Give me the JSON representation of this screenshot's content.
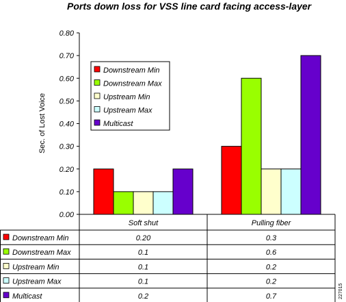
{
  "chart_data": {
    "type": "bar",
    "title": "Ports down loss for VSS line card facing access-layer",
    "ylabel": "Sec. of Lost Voice",
    "xlabel": "",
    "ylim": [
      0,
      0.8
    ],
    "yticks": [
      "0.00",
      "0.10",
      "0.20",
      "0.30",
      "0.40",
      "0.50",
      "0.60",
      "0.70",
      "0.80"
    ],
    "categories": [
      "Soft shut",
      "Pulling fiber"
    ],
    "series": [
      {
        "name": "Downstream Min",
        "color": "#ff0000",
        "values": [
          0.2,
          0.3
        ],
        "labels": [
          "0.20",
          "0.3"
        ]
      },
      {
        "name": "Downstream Max",
        "color": "#99ff00",
        "values": [
          0.1,
          0.6
        ],
        "labels": [
          "0.1",
          "0.6"
        ]
      },
      {
        "name": "Upstream Min",
        "color": "#ffffcc",
        "values": [
          0.1,
          0.2
        ],
        "labels": [
          "0.1",
          "0.2"
        ]
      },
      {
        "name": "Upstream Max",
        "color": "#ccffff",
        "values": [
          0.1,
          0.2
        ],
        "labels": [
          "0.1",
          "0.2"
        ]
      },
      {
        "name": "Multicast",
        "color": "#6600cc",
        "values": [
          0.2,
          0.7
        ],
        "labels": [
          "0.2",
          "0.7"
        ]
      }
    ],
    "legend_position": "top-left inside plot",
    "grid": false
  },
  "figure_id": "227015"
}
